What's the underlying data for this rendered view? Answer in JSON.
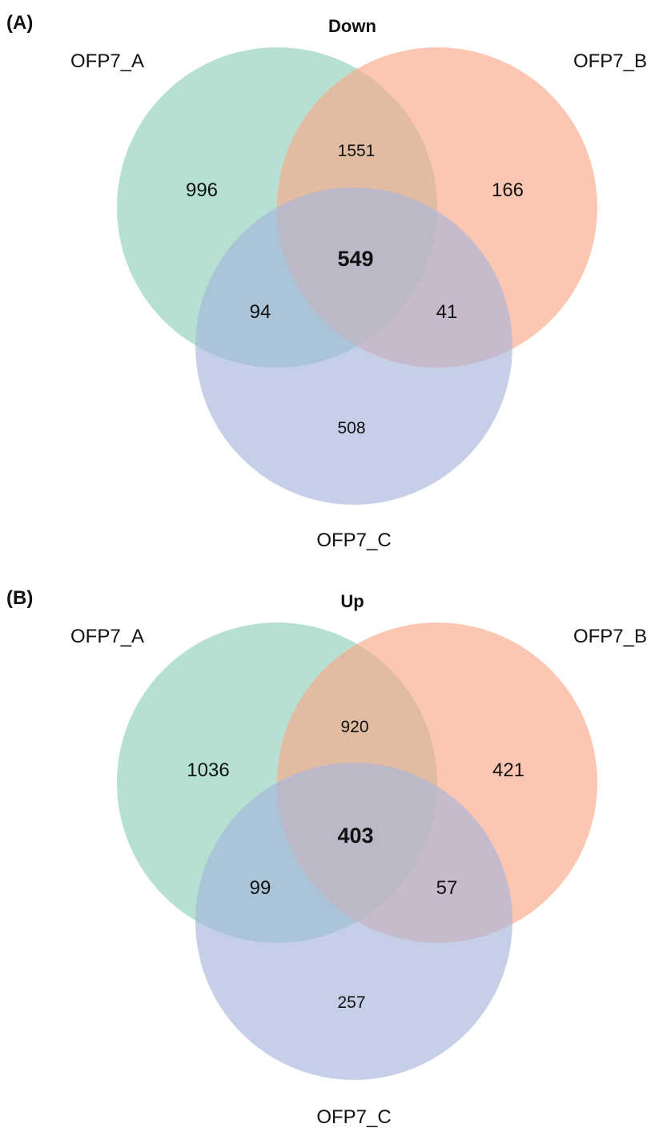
{
  "colors": {
    "set_a": "#8fd0b8",
    "set_b": "#f9a98a",
    "set_c": "#a8b5dc"
  },
  "panels": [
    {
      "panel_label": "(A)",
      "title": "Down",
      "sets": [
        "OFP7_A",
        "OFP7_B",
        "OFP7_C"
      ],
      "regions": {
        "a_only": "996",
        "b_only": "166",
        "c_only": "508",
        "ab": "1551",
        "ac": "94",
        "bc": "41",
        "abc": "549"
      }
    },
    {
      "panel_label": "(B)",
      "title": "Up",
      "sets": [
        "OFP7_A",
        "OFP7_B",
        "OFP7_C"
      ],
      "regions": {
        "a_only": "1036",
        "b_only": "421",
        "c_only": "257",
        "ab": "920",
        "ac": "99",
        "bc": "57",
        "abc": "403"
      }
    }
  ]
}
